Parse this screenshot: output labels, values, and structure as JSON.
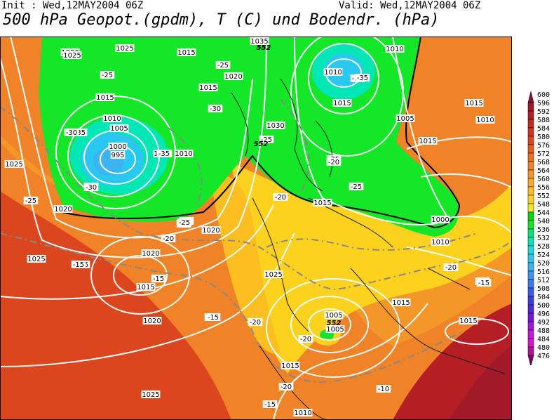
{
  "header": {
    "init": "Init : Wed,12MAY2004 06Z",
    "valid": "Valid: Wed,12MAY2004 06Z",
    "title": "500 hPa Geopot.(gpdm), T (C) und Bodendr. (hPa)"
  },
  "colorbar": {
    "levels": [
      600,
      596,
      592,
      588,
      584,
      580,
      576,
      572,
      568,
      564,
      560,
      556,
      552,
      548,
      544,
      540,
      536,
      532,
      528,
      524,
      520,
      516,
      512,
      508,
      504,
      500,
      496,
      492,
      488,
      484,
      480,
      476
    ],
    "colors": [
      "#8c1030",
      "#a01a2a",
      "#b41e24",
      "#c8281e",
      "#d2321e",
      "#dc461e",
      "#e65a1e",
      "#ec6e1e",
      "#f08228",
      "#f49628",
      "#f8aa28",
      "#fcbe20",
      "#fcd21e",
      "#f8e61e",
      "#00dc00",
      "#14e628",
      "#00e678",
      "#00e6b4",
      "#1edcdc",
      "#28c8f0",
      "#3cb4f0",
      "#3c96f0",
      "#3c78f0",
      "#3c5af0",
      "#3c3cdc",
      "#5028dc",
      "#7814dc",
      "#a014dc",
      "#c814dc",
      "#dc14c8",
      "#b41496",
      "#780a64"
    ]
  },
  "map": {
    "isobar_labels": [
      "1020",
      "1025",
      "1015",
      "1035",
      "1015",
      "1010",
      "1010",
      "1015",
      "1010",
      "1005",
      "1000",
      "995",
      "1010",
      "1025",
      "1020",
      "1005",
      "1015",
      "1030",
      "1005",
      "1015",
      "1000",
      "1020",
      "1015",
      "1010",
      "1025",
      "1020",
      "1025",
      "1020",
      "1015",
      "1015",
      "1025",
      "1020",
      "1010",
      "1005",
      "1015",
      "1010",
      "1015",
      "1015",
      "1025",
      "1010"
    ],
    "temp_labels": [
      "-30",
      "-25",
      "-35",
      "-25",
      "-30",
      "-25",
      "-30",
      "-25",
      "-35",
      "-35",
      "-35",
      "-25",
      "-30",
      "-35",
      "-20",
      "-25",
      "-20",
      "-25",
      "-20",
      "-15",
      "-15",
      "-25",
      "-20",
      "-15",
      "-15",
      "-20",
      "-15",
      "-20",
      "-20",
      "-10",
      "-15",
      "-15",
      "-20"
    ],
    "height_labels": [
      "552",
      "552",
      "552",
      "552"
    ]
  }
}
